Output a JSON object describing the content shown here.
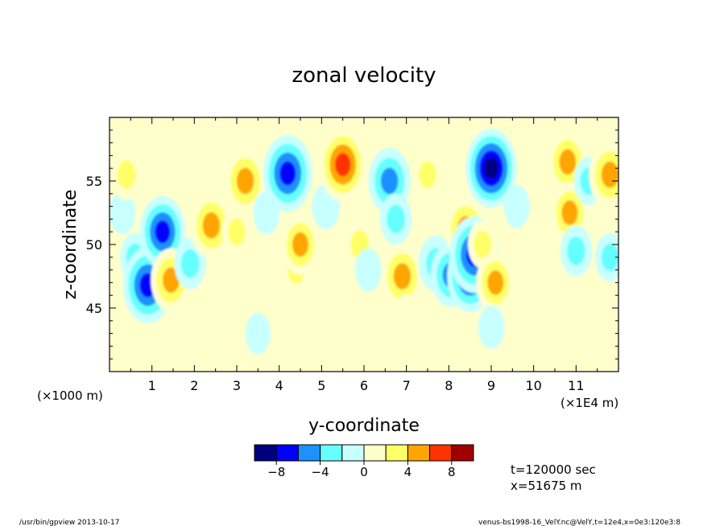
{
  "chart_data": {
    "type": "heatmap",
    "title": "zonal velocity",
    "xlabel": "y-coordinate",
    "ylabel": "z-coordinate",
    "x_offset_label": "(×1000 m)",
    "x_units_label": "(×1E4 m)",
    "xlim": [
      0,
      12
    ],
    "ylim": [
      40,
      60
    ],
    "x_ticks": [
      "1",
      "2",
      "3",
      "4",
      "5",
      "6",
      "7",
      "8",
      "9",
      "10",
      "11"
    ],
    "y_ticks": [
      "45",
      "50",
      "55"
    ],
    "levels": [
      -10,
      -8,
      -6,
      -4,
      -2,
      0,
      2,
      4,
      6,
      8,
      10
    ],
    "colorbar_labels": [
      "−8",
      "−4",
      "0",
      "4",
      "8"
    ],
    "colors": [
      "#00007f",
      "#0000ff",
      "#1e90ff",
      "#66ffff",
      "#c8ffff",
      "#ffffcc",
      "#ffff66",
      "#ffa500",
      "#ff3300",
      "#a00000"
    ],
    "features": [
      {
        "y": 0.3,
        "z": 52.5,
        "u": -1.5
      },
      {
        "y": 0.4,
        "z": 55.5,
        "u": 3.0
      },
      {
        "y": 0.6,
        "z": 49.0,
        "u": -2.5
      },
      {
        "y": 0.9,
        "z": 46.8,
        "u": -8.0
      },
      {
        "y": 1.25,
        "z": 51.0,
        "u": -7.0
      },
      {
        "y": 1.45,
        "z": 47.2,
        "u": 5.5
      },
      {
        "y": 1.9,
        "z": 48.5,
        "u": -3.0
      },
      {
        "y": 2.4,
        "z": 51.5,
        "u": 6.0
      },
      {
        "y": 3.0,
        "z": 51.0,
        "u": 2.5
      },
      {
        "y": 3.2,
        "z": 55.0,
        "u": 6.0
      },
      {
        "y": 3.7,
        "z": 52.5,
        "u": -1.5
      },
      {
        "y": 4.2,
        "z": 55.6,
        "u": -8.0
      },
      {
        "y": 4.4,
        "z": 48.0,
        "u": 2.5
      },
      {
        "y": 4.5,
        "z": 50.0,
        "u": 5.0
      },
      {
        "y": 5.1,
        "z": 53.0,
        "u": -2.0
      },
      {
        "y": 5.5,
        "z": 56.3,
        "u": 7.5
      },
      {
        "y": 5.9,
        "z": 50.0,
        "u": 3.0
      },
      {
        "y": 6.1,
        "z": 48.0,
        "u": -1.5
      },
      {
        "y": 6.6,
        "z": 55.0,
        "u": -6.0
      },
      {
        "y": 6.75,
        "z": 52.0,
        "u": -3.0
      },
      {
        "y": 6.9,
        "z": 47.5,
        "u": 6.0
      },
      {
        "y": 7.5,
        "z": 55.5,
        "u": 2.5
      },
      {
        "y": 7.7,
        "z": 48.5,
        "u": -4.0
      },
      {
        "y": 8.05,
        "z": 47.6,
        "u": -5.5
      },
      {
        "y": 8.4,
        "z": 51.2,
        "u": 6.0
      },
      {
        "y": 8.5,
        "z": 47.5,
        "u": -7.0
      },
      {
        "y": 8.6,
        "z": 49.2,
        "u": -8.0
      },
      {
        "y": 8.8,
        "z": 50.0,
        "u": 2.5
      },
      {
        "y": 9.0,
        "z": 56.0,
        "u": -8.5
      },
      {
        "y": 9.1,
        "z": 47.0,
        "u": 5.0
      },
      {
        "y": 9.6,
        "z": 53.0,
        "u": -1.5
      },
      {
        "y": 10.2,
        "z": 51.0,
        "u": 1.5
      },
      {
        "y": 10.8,
        "z": 56.5,
        "u": 5.5
      },
      {
        "y": 10.85,
        "z": 52.5,
        "u": 5.0
      },
      {
        "y": 11.0,
        "z": 49.5,
        "u": -3.0
      },
      {
        "y": 11.3,
        "z": 55.0,
        "u": -2.5
      },
      {
        "y": 11.8,
        "z": 55.5,
        "u": 6.0
      },
      {
        "y": 11.8,
        "z": 49.0,
        "u": -2.5
      },
      {
        "y": 7.0,
        "z": 44.5,
        "u": 1.0
      },
      {
        "y": 9.0,
        "z": 43.5,
        "u": -1.5
      },
      {
        "y": 3.5,
        "z": 43.0,
        "u": -1.2
      }
    ]
  },
  "annotation": {
    "time": "t=120000 sec",
    "position": "x=51675 m"
  },
  "footer": {
    "program": "/usr/bin/gpview  2013-10-17",
    "source": "venus-bs1998-16_VelY.nc@VelY,t=12e4,x=0e3:120e3:8"
  }
}
